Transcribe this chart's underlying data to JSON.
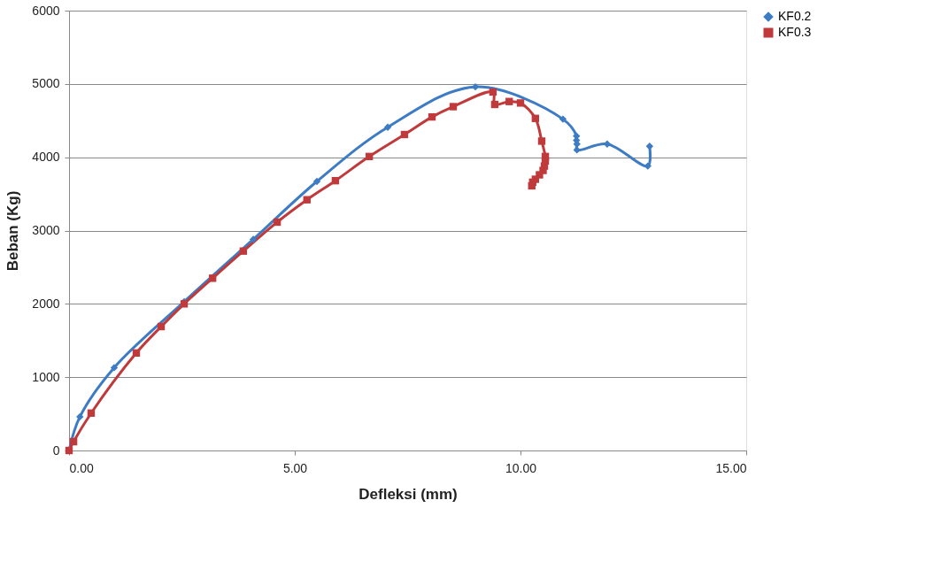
{
  "chart_data": {
    "type": "line",
    "xlabel": "Defleksi (mm)",
    "ylabel": "Beban (Kg)",
    "xlim": [
      0,
      15
    ],
    "xticks": [
      {
        "value": 0,
        "label": "0.00"
      },
      {
        "value": 5,
        "label": "5.00"
      },
      {
        "value": 10,
        "label": "10.00"
      },
      {
        "value": 15,
        "label": "15.00"
      }
    ],
    "ylim": [
      0,
      6000
    ],
    "yticks": [
      0,
      1000,
      2000,
      3000,
      4000,
      5000,
      6000
    ],
    "grid": "y",
    "legend": "right",
    "line_style": "solid",
    "series": [
      {
        "name": "KF0.2",
        "color": "#3d7cc4",
        "marker": "diamond",
        "x": [
          0,
          0.24,
          1.0,
          2.55,
          4.08,
          5.49,
          7.06,
          9.0,
          10.94,
          11.24,
          11.24,
          11.25,
          11.25,
          11.92,
          12.82,
          12.86
        ],
        "values": [
          0,
          460,
          1130,
          2030,
          2880,
          3670,
          4410,
          4960,
          4520,
          4290,
          4230,
          4180,
          4100,
          4180,
          3880,
          4150
        ]
      },
      {
        "name": "KF0.3",
        "color": "#c0393b",
        "marker": "square",
        "x": [
          0,
          0.1,
          0.49,
          1.49,
          2.04,
          2.55,
          3.18,
          3.86,
          4.61,
          5.27,
          5.9,
          6.65,
          7.43,
          8.04,
          8.51,
          9.39,
          9.43,
          9.75,
          10.0,
          10.33,
          10.47,
          10.55,
          10.55,
          10.53,
          10.5,
          10.42,
          10.33,
          10.27,
          10.25
        ],
        "values": [
          0,
          120,
          510,
          1330,
          1690,
          2000,
          2350,
          2720,
          3115,
          3420,
          3680,
          4010,
          4310,
          4550,
          4690,
          4890,
          4720,
          4760,
          4740,
          4530,
          4220,
          4010,
          3950,
          3880,
          3820,
          3760,
          3700,
          3660,
          3610
        ]
      }
    ]
  }
}
